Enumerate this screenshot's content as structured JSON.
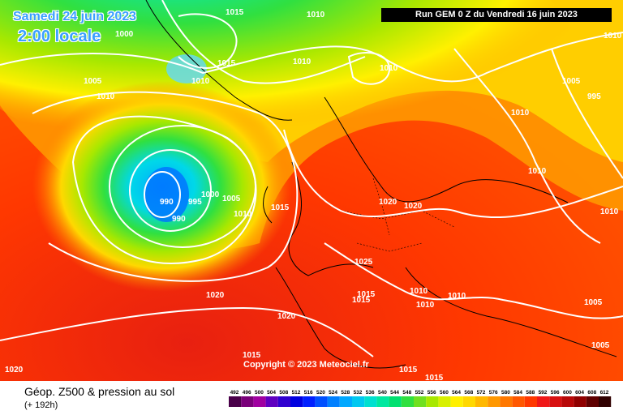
{
  "header": {
    "date": "Samedi 24 juin 2023",
    "local_time": "2:00 locale",
    "run": "Run GEM 0 Z du Vendredi 16 juin 2023"
  },
  "footer": {
    "title": "Géop. Z500 & pression au sol",
    "subtitle": "(+ 192h)",
    "copyright": "Copyright © 2023 Meteociel.fr"
  },
  "legend": {
    "values": [
      "492",
      "496",
      "500",
      "504",
      "508",
      "512",
      "516",
      "520",
      "524",
      "528",
      "532",
      "536",
      "540",
      "544",
      "548",
      "552",
      "556",
      "560",
      "564",
      "568",
      "572",
      "576",
      "580",
      "584",
      "588",
      "592",
      "596",
      "600",
      "604",
      "608",
      "612"
    ],
    "colors": [
      "#4a004a",
      "#7a007a",
      "#a000a0",
      "#6000c0",
      "#3000d0",
      "#0000e0",
      "#0020ff",
      "#0050ff",
      "#0080ff",
      "#00a8ff",
      "#00c8f0",
      "#00e0d0",
      "#00e8a0",
      "#00e070",
      "#30e040",
      "#70e020",
      "#a8e800",
      "#d8f000",
      "#fff000",
      "#ffd800",
      "#ffb800",
      "#ff9800",
      "#ff7800",
      "#ff5800",
      "#ff3800",
      "#f01818",
      "#d81010",
      "#b80808",
      "#900000",
      "#600000",
      "#300000"
    ]
  },
  "isobars": [
    "1015",
    "1010",
    "1000",
    "1015",
    "1010",
    "1010",
    "1005",
    "1010",
    "1010",
    "1010",
    "1010",
    "1005",
    "995",
    "1010",
    "1010",
    "990",
    "995",
    "1000",
    "1005",
    "990",
    "1010",
    "1015",
    "1020",
    "1020",
    "1025",
    "1015",
    "1015",
    "1010",
    "1010",
    "1010",
    "1005",
    "1020",
    "1020",
    "1015",
    "1015",
    "1015",
    "1020",
    "1005"
  ]
}
